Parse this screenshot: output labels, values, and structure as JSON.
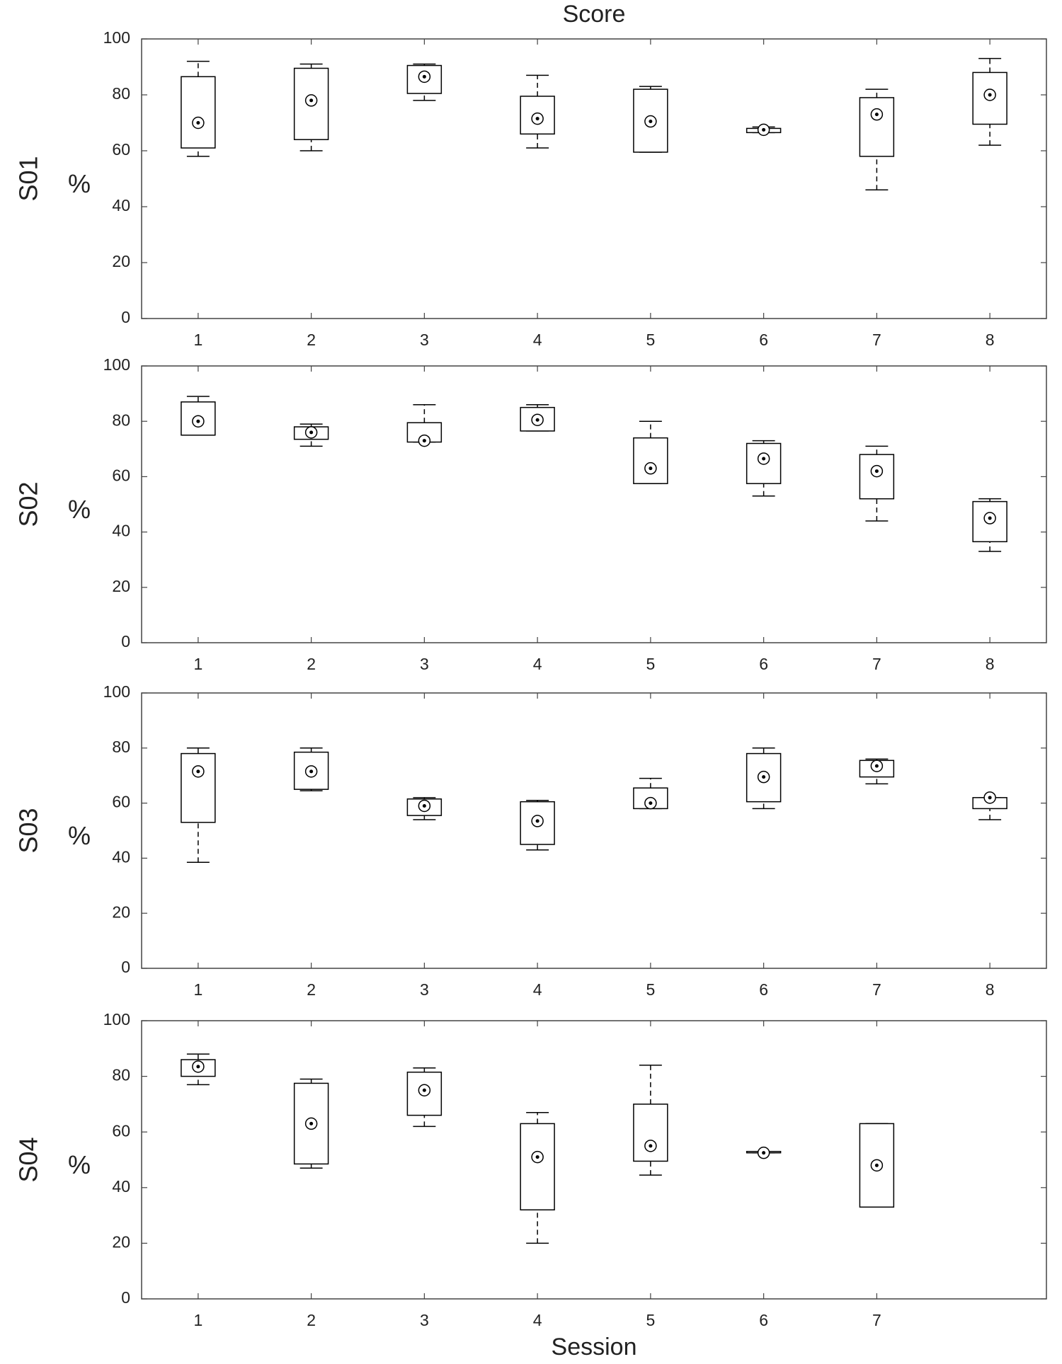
{
  "chart_data": [
    {
      "type": "box",
      "title": "Score",
      "panel": "S01",
      "ylabel": "%",
      "categories": [
        "1",
        "2",
        "3",
        "4",
        "5",
        "6",
        "7",
        "8"
      ],
      "low": [
        58,
        60,
        78,
        61,
        59.5,
        66.5,
        46,
        62
      ],
      "q1": [
        61,
        64,
        80.5,
        66,
        59.5,
        66.5,
        58,
        69.5
      ],
      "median": [
        70,
        78,
        86.5,
        71.5,
        70.5,
        67.5,
        73,
        80
      ],
      "q3": [
        86.5,
        89.5,
        90.5,
        79.5,
        82,
        68,
        79,
        88
      ],
      "high": [
        92,
        91,
        91,
        87,
        83,
        68.5,
        82,
        93
      ],
      "ylim": [
        0,
        100
      ],
      "yticks": [
        0,
        20,
        40,
        60,
        80,
        100
      ],
      "color": "#000000"
    },
    {
      "type": "box",
      "panel": "S02",
      "ylabel": "%",
      "categories": [
        "1",
        "2",
        "3",
        "4",
        "5",
        "6",
        "7",
        "8"
      ],
      "low": [
        75,
        71,
        72.5,
        76.5,
        57.5,
        53,
        44,
        33
      ],
      "q1": [
        75,
        73.5,
        72.5,
        76.5,
        57.5,
        57.5,
        52,
        36.5
      ],
      "median": [
        80,
        76,
        73,
        80.5,
        63,
        66.5,
        62,
        45
      ],
      "q3": [
        87,
        78,
        79.5,
        85,
        74,
        72,
        68,
        51
      ],
      "high": [
        89,
        79,
        86,
        86,
        80,
        73,
        71,
        52
      ],
      "ylim": [
        0,
        100
      ],
      "yticks": [
        0,
        20,
        40,
        60,
        80,
        100
      ],
      "color": "#000000"
    },
    {
      "type": "box",
      "panel": "S03",
      "ylabel": "%",
      "categories": [
        "1",
        "2",
        "3",
        "4",
        "5",
        "6",
        "7",
        "8"
      ],
      "low": [
        38.5,
        64.5,
        54,
        43,
        58,
        58,
        67,
        54
      ],
      "q1": [
        53,
        65,
        55.5,
        45,
        58,
        60.5,
        69.5,
        58
      ],
      "median": [
        71.5,
        71.5,
        59,
        53.5,
        60,
        69.5,
        73.5,
        62
      ],
      "q3": [
        78,
        78.5,
        61.5,
        60.5,
        65.5,
        78,
        75.5,
        62
      ],
      "high": [
        80,
        80,
        62,
        61,
        69,
        80,
        76,
        62
      ],
      "ylim": [
        0,
        100
      ],
      "yticks": [
        0,
        20,
        40,
        60,
        80,
        100
      ],
      "color": "#000000"
    },
    {
      "type": "box",
      "panel": "S04",
      "ylabel": "%",
      "xlabel": "Session",
      "categories": [
        "1",
        "2",
        "3",
        "4",
        "5",
        "6",
        "7",
        null
      ],
      "low": [
        77,
        47,
        62,
        20,
        44.5,
        52.5,
        33,
        null
      ],
      "q1": [
        80,
        48.5,
        66,
        32,
        49.5,
        52.5,
        33,
        null
      ],
      "median": [
        83.5,
        63,
        75,
        51,
        55,
        52.5,
        48,
        null
      ],
      "q3": [
        86,
        77.5,
        81.5,
        63,
        70,
        53,
        63,
        null
      ],
      "high": [
        88,
        79,
        83,
        67,
        84,
        53,
        63,
        null
      ],
      "ylim": [
        0,
        100
      ],
      "yticks": [
        0,
        20,
        40,
        60,
        80,
        100
      ],
      "color": "#000000"
    }
  ]
}
